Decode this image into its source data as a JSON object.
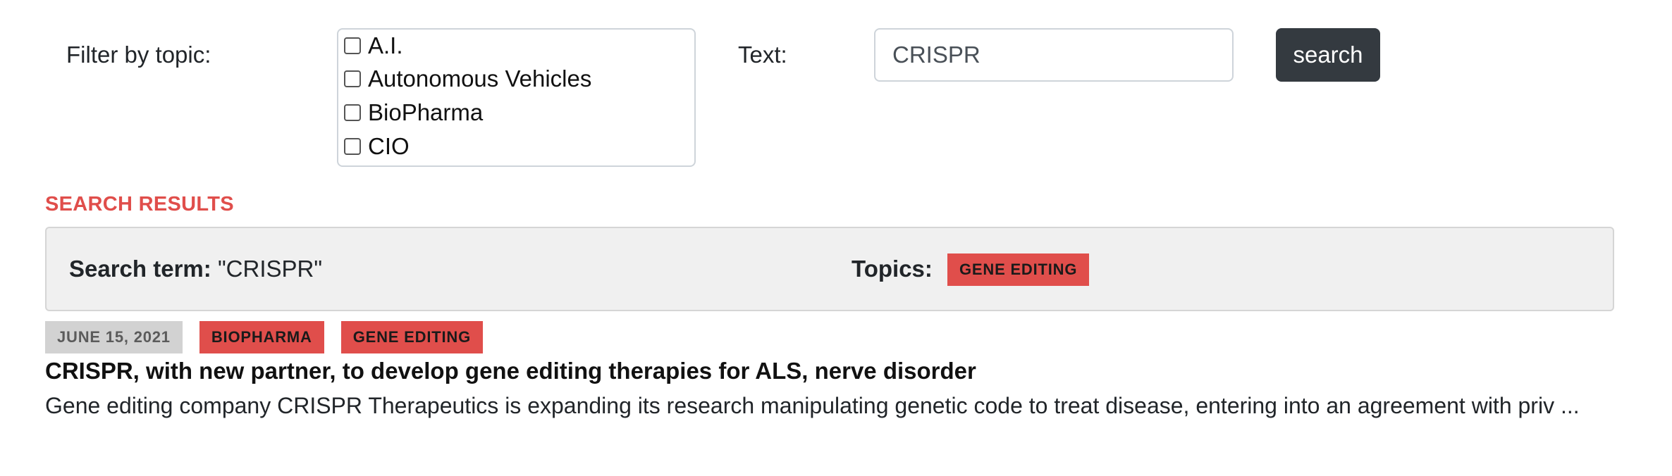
{
  "filter": {
    "label": "Filter by topic:",
    "topics": [
      {
        "label": "A.I.",
        "checked": false
      },
      {
        "label": "Autonomous Vehicles",
        "checked": false
      },
      {
        "label": "BioPharma",
        "checked": false
      },
      {
        "label": "CIO",
        "checked": false
      }
    ]
  },
  "text_search": {
    "label": "Text:",
    "value": "CRISPR",
    "button_label": "search"
  },
  "results": {
    "heading": "SEARCH RESULTS",
    "summary": {
      "term_label": "Search term:",
      "term_value": "\"CRISPR\"",
      "topics_label": "Topics:",
      "topics": [
        "GENE EDITING"
      ]
    },
    "items": [
      {
        "date": "JUNE 15, 2021",
        "tags": [
          "BIOPHARMA",
          "GENE EDITING"
        ],
        "title": "CRISPR, with new partner, to develop gene editing therapies for ALS, nerve disorder",
        "snippet": "Gene editing company CRISPR Therapeutics is expanding its research manipulating genetic code to treat disease, entering into an agreement with priv ..."
      }
    ]
  },
  "colors": {
    "accent_red": "#e04e4b",
    "button_dark": "#343a40",
    "panel_gray": "#f0f0f0",
    "date_badge_gray": "#d2d2d2"
  }
}
